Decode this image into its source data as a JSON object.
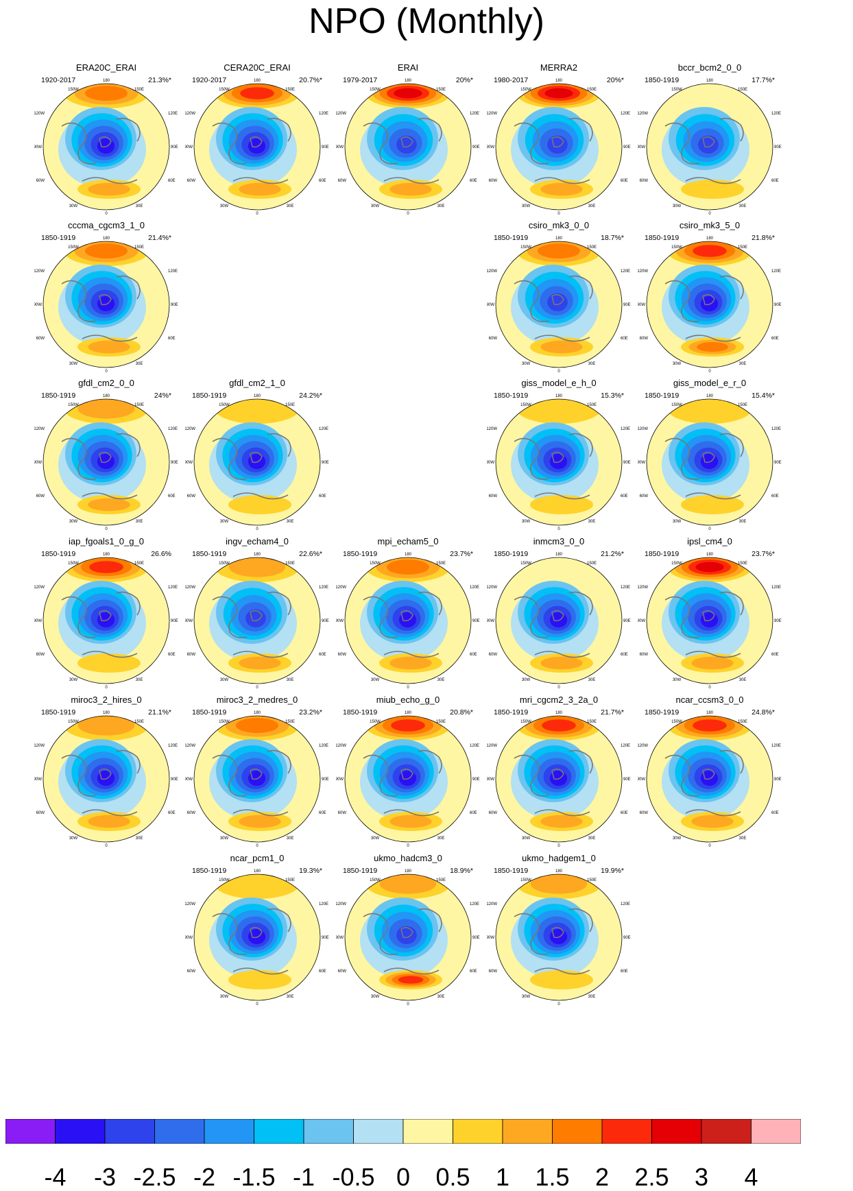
{
  "title": "NPO (Monthly)",
  "colorbar": {
    "colors": [
      "#8a1cf5",
      "#2a10f5",
      "#2e43eb",
      "#2f6ded",
      "#2295f5",
      "#00c0f5",
      "#6bc3f0",
      "#b3e0f2",
      "#fef6a2",
      "#fed22b",
      "#fea822",
      "#fe7c00",
      "#fc2a0a",
      "#e40004",
      "#cd201b",
      "#ffb3b9"
    ],
    "labels": [
      "-4",
      "-3",
      "-2.5",
      "-2",
      "-1.5",
      "-1",
      "-0.5",
      "0",
      "0.5",
      "1",
      "1.5",
      "2",
      "2.5",
      "3",
      "4"
    ]
  },
  "map_labels": {
    "top": "180",
    "tl": "150W",
    "tr": "150E",
    "ul": "120W",
    "ur": "120E",
    "l": "90W",
    "r": "90E",
    "ll": "60W",
    "lr": "60E",
    "bl": "30W",
    "br": "30E",
    "bottom": "0"
  },
  "panels": [
    {
      "title": "ERA20C_ERAI",
      "period": "1920-2017",
      "pct": "21.3%*",
      "pos": "1-1",
      "strength": {
        "high": 1.6,
        "low": -3.2,
        "atl": 1.0
      }
    },
    {
      "title": "CERA20C_ERAI",
      "period": "1920-2017",
      "pct": "20.7%*",
      "pos": "1-2",
      "strength": {
        "high": 2.0,
        "low": -3.0,
        "atl": 1.0
      }
    },
    {
      "title": "ERAI",
      "period": "1979-2017",
      "pct": "20%*",
      "pos": "1-3",
      "strength": {
        "high": 2.6,
        "low": -2.8,
        "atl": 1.0
      }
    },
    {
      "title": "MERRA2",
      "period": "1980-2017",
      "pct": "20%*",
      "pos": "1-4",
      "strength": {
        "high": 2.6,
        "low": -2.8,
        "atl": 1.0
      }
    },
    {
      "title": "bccr_bcm2_0_0",
      "period": "1850-1919",
      "pct": "17.7%*",
      "pos": "1-5",
      "strength": {
        "high": 0.3,
        "low": -2.8,
        "atl": 0.8
      }
    },
    {
      "title": "cccma_cgcm3_1_0",
      "period": "1850-1919",
      "pct": "21.4%*",
      "pos": "2-1",
      "strength": {
        "high": 1.5,
        "low": -3.2,
        "atl": 1.0
      }
    },
    {
      "title": "csiro_mk3_0_0",
      "period": "1850-1919",
      "pct": "18.7%*",
      "pos": "2-4",
      "strength": {
        "high": 1.6,
        "low": -2.8,
        "atl": 1.3
      }
    },
    {
      "title": "csiro_mk3_5_0",
      "period": "1850-1919",
      "pct": "21.8%*",
      "pos": "2-5",
      "strength": {
        "high": 2.4,
        "low": -3.2,
        "atl": 1.6
      }
    },
    {
      "title": "gfdl_cm2_0_0",
      "period": "1850-1919",
      "pct": "24%*",
      "pos": "3-1",
      "strength": {
        "high": 1.0,
        "low": -3.4,
        "atl": 1.0
      }
    },
    {
      "title": "gfdl_cm2_1_0",
      "period": "1850-1919",
      "pct": "24.2%*",
      "pos": "3-2",
      "strength": {
        "high": 0.8,
        "low": -3.4,
        "atl": 0.6
      }
    },
    {
      "title": "giss_model_e_h_0",
      "period": "1850-1919",
      "pct": "15.3%*",
      "pos": "3-4",
      "strength": {
        "high": 0.8,
        "low": -3.0,
        "atl": 0.6
      }
    },
    {
      "title": "giss_model_e_r_0",
      "period": "1850-1919",
      "pct": "15.4%*",
      "pos": "3-5",
      "strength": {
        "high": 0.8,
        "low": -3.0,
        "atl": 0.5
      }
    },
    {
      "title": "iap_fgoals1_0_g_0",
      "period": "1850-1919",
      "pct": "26.6%",
      "pos": "4-1",
      "strength": {
        "high": 2.2,
        "low": -3.6,
        "atl": 0.5
      }
    },
    {
      "title": "ingv_echam4_0",
      "period": "1850-1919",
      "pct": "22.6%*",
      "pos": "4-2",
      "strength": {
        "high": 1.4,
        "low": -2.8,
        "atl": 1.0
      }
    },
    {
      "title": "mpi_echam5_0",
      "period": "1850-1919",
      "pct": "23.7%*",
      "pos": "4-3",
      "strength": {
        "high": 1.8,
        "low": -3.0,
        "atl": 1.2
      }
    },
    {
      "title": "inmcm3_0_0",
      "period": "1850-1919",
      "pct": "21.2%*",
      "pos": "4-4",
      "strength": {
        "high": 0.3,
        "low": -3.6,
        "atl": 1.0
      }
    },
    {
      "title": "ipsl_cm4_0",
      "period": "1850-1919",
      "pct": "23.7%*",
      "pos": "4-5",
      "strength": {
        "high": 2.6,
        "low": -3.0,
        "atl": 1.2
      }
    },
    {
      "title": "miroc3_2_hires_0",
      "period": "1850-1919",
      "pct": "21.1%*",
      "pos": "5-1",
      "strength": {
        "high": 1.4,
        "low": -3.0,
        "atl": 1.2
      }
    },
    {
      "title": "miroc3_2_medres_0",
      "period": "1850-1919",
      "pct": "23.2%*",
      "pos": "5-2",
      "strength": {
        "high": 1.6,
        "low": -3.2,
        "atl": 1.2
      }
    },
    {
      "title": "miub_echo_g_0",
      "period": "1850-1919",
      "pct": "20.8%*",
      "pos": "5-3",
      "strength": {
        "high": 2.2,
        "low": -3.0,
        "atl": 1.0
      }
    },
    {
      "title": "mri_cgcm2_3_2a_0",
      "period": "1850-1919",
      "pct": "21.7%*",
      "pos": "5-4",
      "strength": {
        "high": 2.2,
        "low": -3.2,
        "atl": 1.0
      }
    },
    {
      "title": "ncar_ccsm3_0_0",
      "period": "1850-1919",
      "pct": "24.8%*",
      "pos": "5-5",
      "strength": {
        "high": 2.2,
        "low": -3.6,
        "atl": 1.4
      }
    },
    {
      "title": "ncar_pcm1_0",
      "period": "1850-1919",
      "pct": "19.3%*",
      "pos": "6-2",
      "strength": {
        "high": 0.8,
        "low": -3.4,
        "atl": 0.6
      }
    },
    {
      "title": "ukmo_hadcm3_0",
      "period": "1850-1919",
      "pct": "18.9%*",
      "pos": "6-3",
      "strength": {
        "high": 1.4,
        "low": -2.8,
        "atl": 2.0
      }
    },
    {
      "title": "ukmo_hadgem1_0",
      "period": "1850-1919",
      "pct": "19.9%*",
      "pos": "6-4",
      "strength": {
        "high": 1.0,
        "low": -3.0,
        "atl": 0.6
      }
    }
  ]
}
